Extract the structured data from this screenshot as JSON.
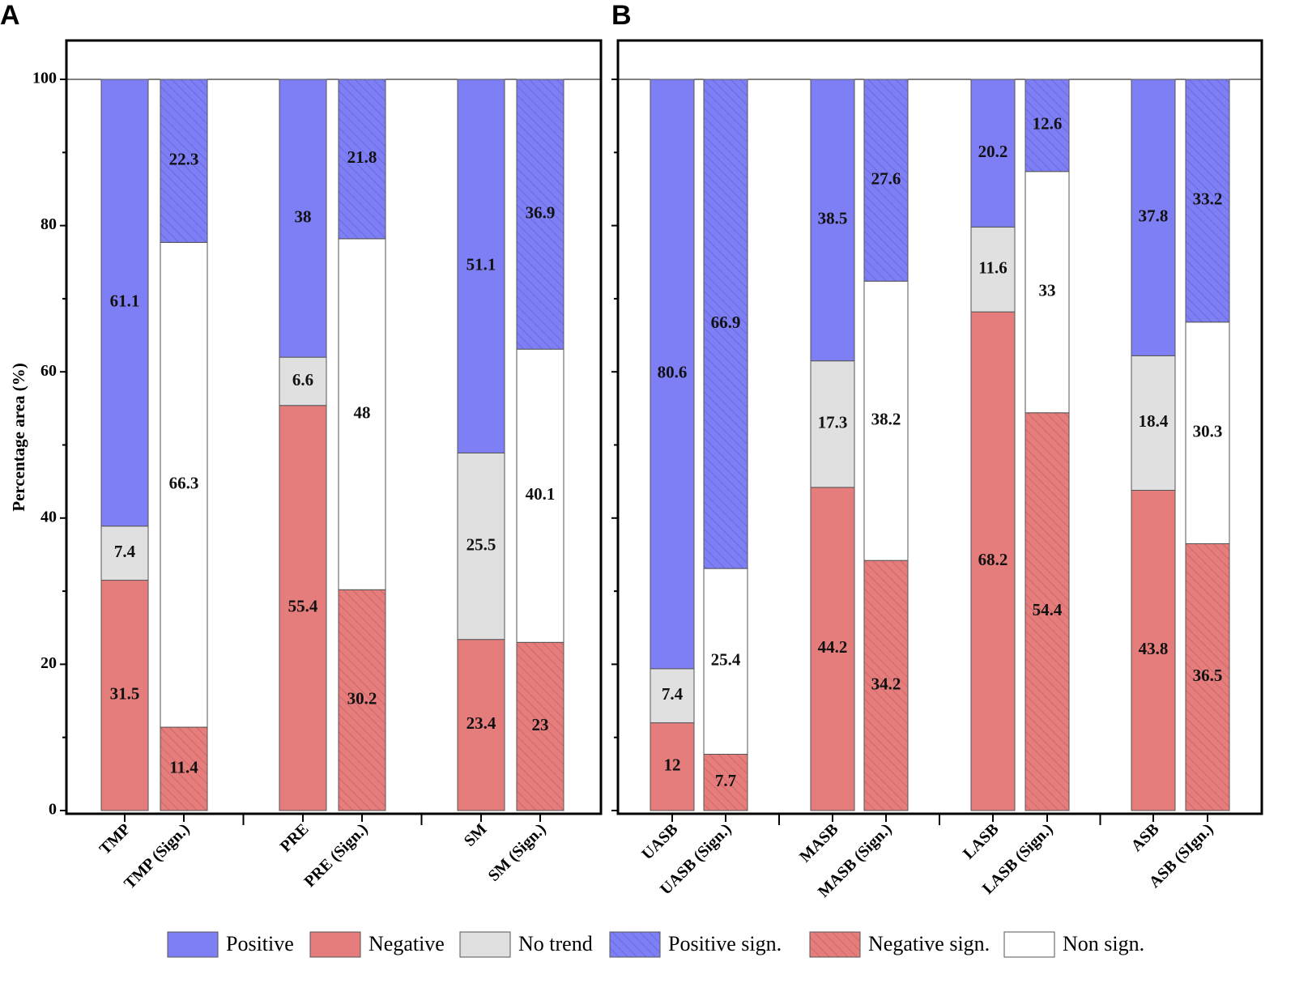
{
  "chart_data": {
    "type": "bar",
    "stacked": true,
    "ylabel": "Percentage area (%)",
    "ylim": [
      0,
      100
    ],
    "yticks": [
      0,
      20,
      40,
      60,
      80,
      100
    ],
    "legend": {
      "placement": "bottom",
      "entries": [
        {
          "key": "positive",
          "label": "Positive",
          "color": "#7f7ff5",
          "hatched": false
        },
        {
          "key": "negative",
          "label": "Negative",
          "color": "#e57d7d",
          "hatched": false
        },
        {
          "key": "no_trend",
          "label": "No trend",
          "color": "#e0e0e0",
          "hatched": false
        },
        {
          "key": "positive_sign",
          "label": "Positive sign.",
          "color": "#7f7ff5",
          "hatched": true
        },
        {
          "key": "negative_sign",
          "label": "Negative sign.",
          "color": "#e57d7d",
          "hatched": true
        },
        {
          "key": "non_sign",
          "label": "Non sign.",
          "color": "#ffffff",
          "hatched": false
        }
      ]
    },
    "panels": [
      {
        "letter": "A",
        "categories": [
          "TMP",
          "TMP (Sign.)",
          "PRE",
          "PRE (Sign.)",
          "SM",
          "SM (Sign.)"
        ],
        "bars": [
          {
            "segments": [
              [
                "negative",
                31.5
              ],
              [
                "no_trend",
                7.4
              ],
              [
                "positive",
                61.1
              ]
            ]
          },
          {
            "segments": [
              [
                "negative_sign",
                11.4
              ],
              [
                "non_sign",
                66.3
              ],
              [
                "positive_sign",
                22.3
              ]
            ]
          },
          {
            "segments": [
              [
                "negative",
                55.4
              ],
              [
                "no_trend",
                6.6
              ],
              [
                "positive",
                38
              ]
            ]
          },
          {
            "segments": [
              [
                "negative_sign",
                30.2
              ],
              [
                "non_sign",
                48
              ],
              [
                "positive_sign",
                21.8
              ]
            ]
          },
          {
            "segments": [
              [
                "negative",
                23.4
              ],
              [
                "no_trend",
                25.5
              ],
              [
                "positive",
                51.1
              ]
            ]
          },
          {
            "segments": [
              [
                "negative_sign",
                23
              ],
              [
                "non_sign",
                40.1
              ],
              [
                "positive_sign",
                36.9
              ]
            ]
          }
        ]
      },
      {
        "letter": "B",
        "categories": [
          "UASB",
          "UASB (Sign.)",
          "MASB",
          "MASB (Sign.)",
          "LASB",
          "LASB (Sign.)",
          "ASB",
          "ASB (SIgn.)"
        ],
        "bars": [
          {
            "segments": [
              [
                "negative",
                12
              ],
              [
                "no_trend",
                7.4
              ],
              [
                "positive",
                80.6
              ]
            ]
          },
          {
            "segments": [
              [
                "negative_sign",
                7.7
              ],
              [
                "non_sign",
                25.4
              ],
              [
                "positive_sign",
                66.9
              ]
            ]
          },
          {
            "segments": [
              [
                "negative",
                44.2
              ],
              [
                "no_trend",
                17.3
              ],
              [
                "positive",
                38.5
              ]
            ]
          },
          {
            "segments": [
              [
                "negative_sign",
                34.2
              ],
              [
                "non_sign",
                38.2
              ],
              [
                "positive_sign",
                27.6
              ]
            ]
          },
          {
            "segments": [
              [
                "negative",
                68.2
              ],
              [
                "no_trend",
                11.6
              ],
              [
                "positive",
                20.2
              ]
            ]
          },
          {
            "segments": [
              [
                "negative_sign",
                54.4
              ],
              [
                "non_sign",
                33
              ],
              [
                "positive_sign",
                12.6
              ]
            ]
          },
          {
            "segments": [
              [
                "negative",
                43.8
              ],
              [
                "no_trend",
                18.4
              ],
              [
                "positive",
                37.8
              ]
            ]
          },
          {
            "segments": [
              [
                "negative_sign",
                36.5
              ],
              [
                "non_sign",
                30.3
              ],
              [
                "positive_sign",
                33.2
              ]
            ]
          }
        ]
      }
    ]
  }
}
